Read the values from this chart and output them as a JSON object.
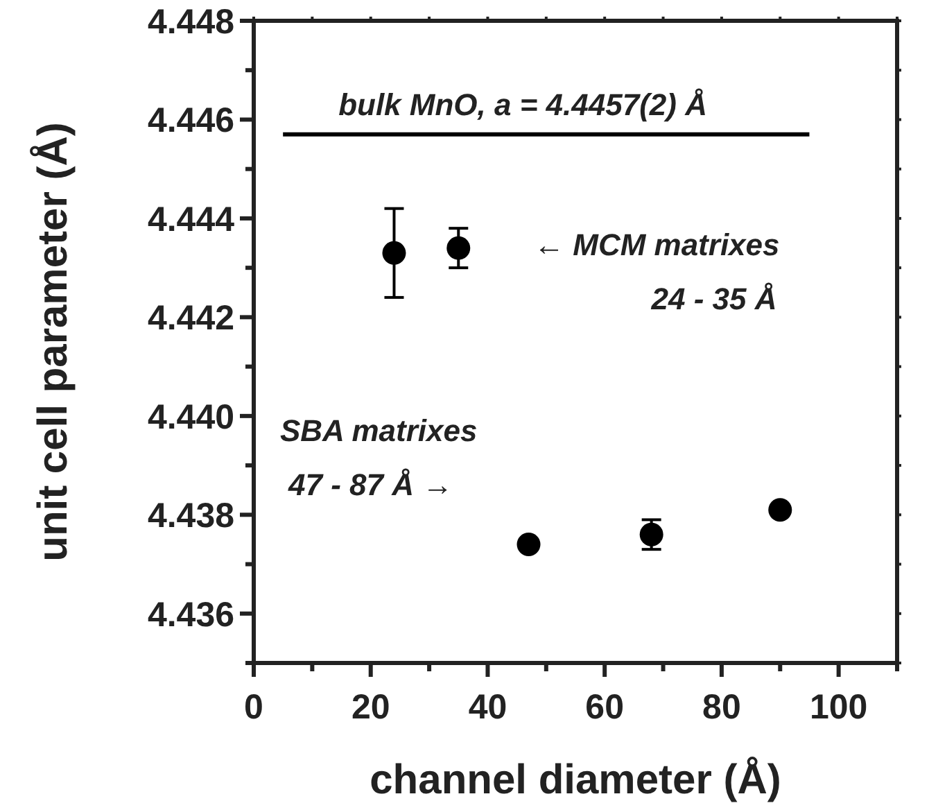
{
  "chart_data": {
    "type": "scatter",
    "xlabel": "channel diameter (Å)",
    "ylabel": "unit cell parameter (Å)",
    "xlim": [
      0,
      110
    ],
    "ylim": [
      4.435,
      4.448
    ],
    "xticks": [
      0,
      {
        "value": 10,
        "label": null
      },
      20,
      {
        "value": 30,
        "label": null
      },
      40,
      {
        "value": 50,
        "label": null
      },
      60,
      {
        "value": 70,
        "label": null
      },
      80,
      {
        "value": 90,
        "label": null
      },
      100,
      {
        "value": 110,
        "label": null
      }
    ],
    "yticks": [
      {
        "value": 4.435,
        "label": null
      },
      4.436,
      {
        "value": 4.437,
        "label": null
      },
      4.438,
      {
        "value": 4.439,
        "label": null
      },
      {
        "value": 4.44,
        "label": "4.440"
      },
      {
        "value": 4.441,
        "label": null
      },
      4.442,
      {
        "value": 4.443,
        "label": null
      },
      4.444,
      {
        "value": 4.445,
        "label": null
      },
      4.446,
      {
        "value": 4.447,
        "label": null
      },
      4.448
    ],
    "marker": "circle",
    "grid": false,
    "series": [
      {
        "color": "#000000",
        "x": [
          24,
          35,
          47,
          68,
          90
        ],
        "values": [
          4.4433,
          4.4434,
          4.4374,
          4.4376,
          4.4381
        ],
        "errors": [
          0.0009,
          0.0004,
          0.0001,
          0.0003,
          null
        ]
      },
      {
        "type": "line",
        "color": "#000000",
        "x": [
          5,
          95
        ],
        "values": [
          4.4457,
          4.4457
        ],
        "marker": "none",
        "line_style": "solid"
      }
    ],
    "annotations": [
      {
        "text": "bulk MnO, a = 4.4457(2) Å",
        "x": 46,
        "y": 4.4457
      },
      "← MCM matrixes",
      "24 - 35 Å",
      "SBA matrixes",
      "47 - 87 Å →"
    ]
  }
}
